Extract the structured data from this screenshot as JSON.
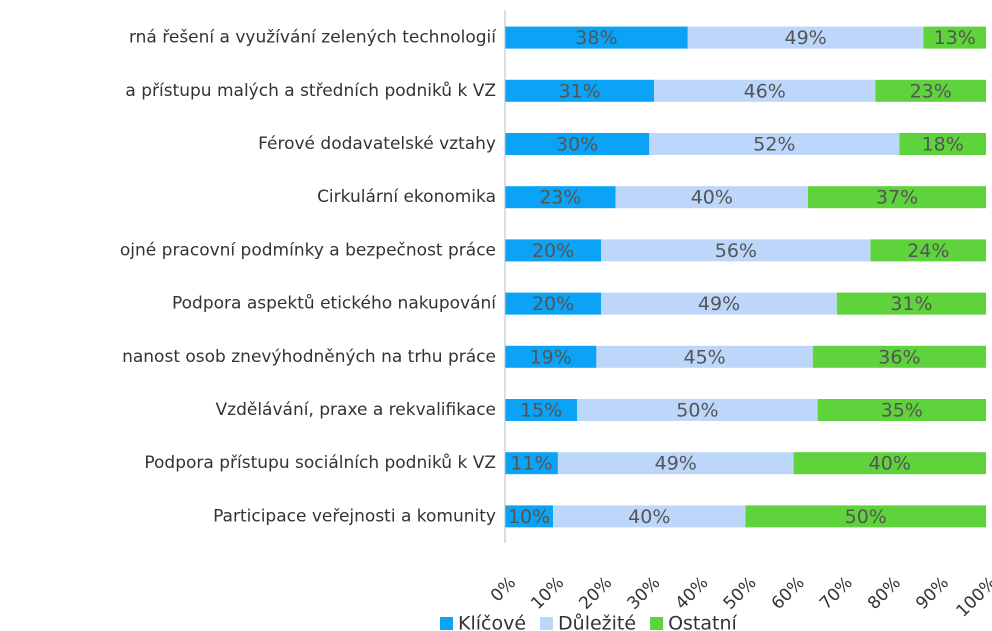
{
  "chart_data": {
    "type": "stacked_bar_horizontal",
    "categories": [
      "rná řešení a využívání zelených technologií",
      "a přístupu malých a středních podniků k VZ",
      "Férové dodavatelské vztahy",
      "Cirkulární ekonomika",
      "ojné pracovní podmínky a bezpečnost práce",
      "Podpora aspektů etického nakupování",
      "nanost osob znevýhodněných na trhu práce",
      "Vzdělávání, praxe a rekvalifikace",
      "Podpora přístupu sociálních podniků k VZ",
      "Participace veřejnosti a komunity"
    ],
    "series": [
      {
        "name": "Klíčové",
        "color": "#0ba3f5",
        "values": [
          38,
          31,
          30,
          23,
          20,
          20,
          19,
          15,
          11,
          10
        ],
        "value_labels": [
          "38%",
          "31%",
          "30%",
          "23%",
          "20%",
          "20%",
          "19%",
          "15%",
          "11%",
          "10%"
        ]
      },
      {
        "name": "Důležité",
        "color": "#bdd7fb",
        "values": [
          49,
          46,
          52,
          40,
          56,
          49,
          45,
          50,
          49,
          40
        ],
        "value_labels": [
          "49%",
          "46%",
          "52%",
          "40%",
          "56%",
          "49%",
          "45%",
          "50%",
          "49%",
          "40%"
        ]
      },
      {
        "name": "Ostatní",
        "color": "#5fd33c",
        "values": [
          13,
          23,
          18,
          37,
          24,
          31,
          36,
          35,
          40,
          50
        ],
        "value_labels": [
          "13%",
          "23%",
          "18%",
          "37%",
          "24%",
          "31%",
          "36%",
          "35%",
          "40%",
          "50%"
        ]
      }
    ],
    "xlim": [
      0,
      100
    ],
    "xticks": [
      {
        "value": 0,
        "label": "0%"
      },
      {
        "value": 10,
        "label": "10%"
      },
      {
        "value": 20,
        "label": "20%"
      },
      {
        "value": 30,
        "label": "30%"
      },
      {
        "value": 40,
        "label": "40%"
      },
      {
        "value": 50,
        "label": "50%"
      },
      {
        "value": 60,
        "label": "60%"
      },
      {
        "value": 70,
        "label": "70%"
      },
      {
        "value": 80,
        "label": "80%"
      },
      {
        "value": 90,
        "label": "90%"
      },
      {
        "value": 100,
        "label": "100%"
      }
    ],
    "legend": "bottom"
  }
}
